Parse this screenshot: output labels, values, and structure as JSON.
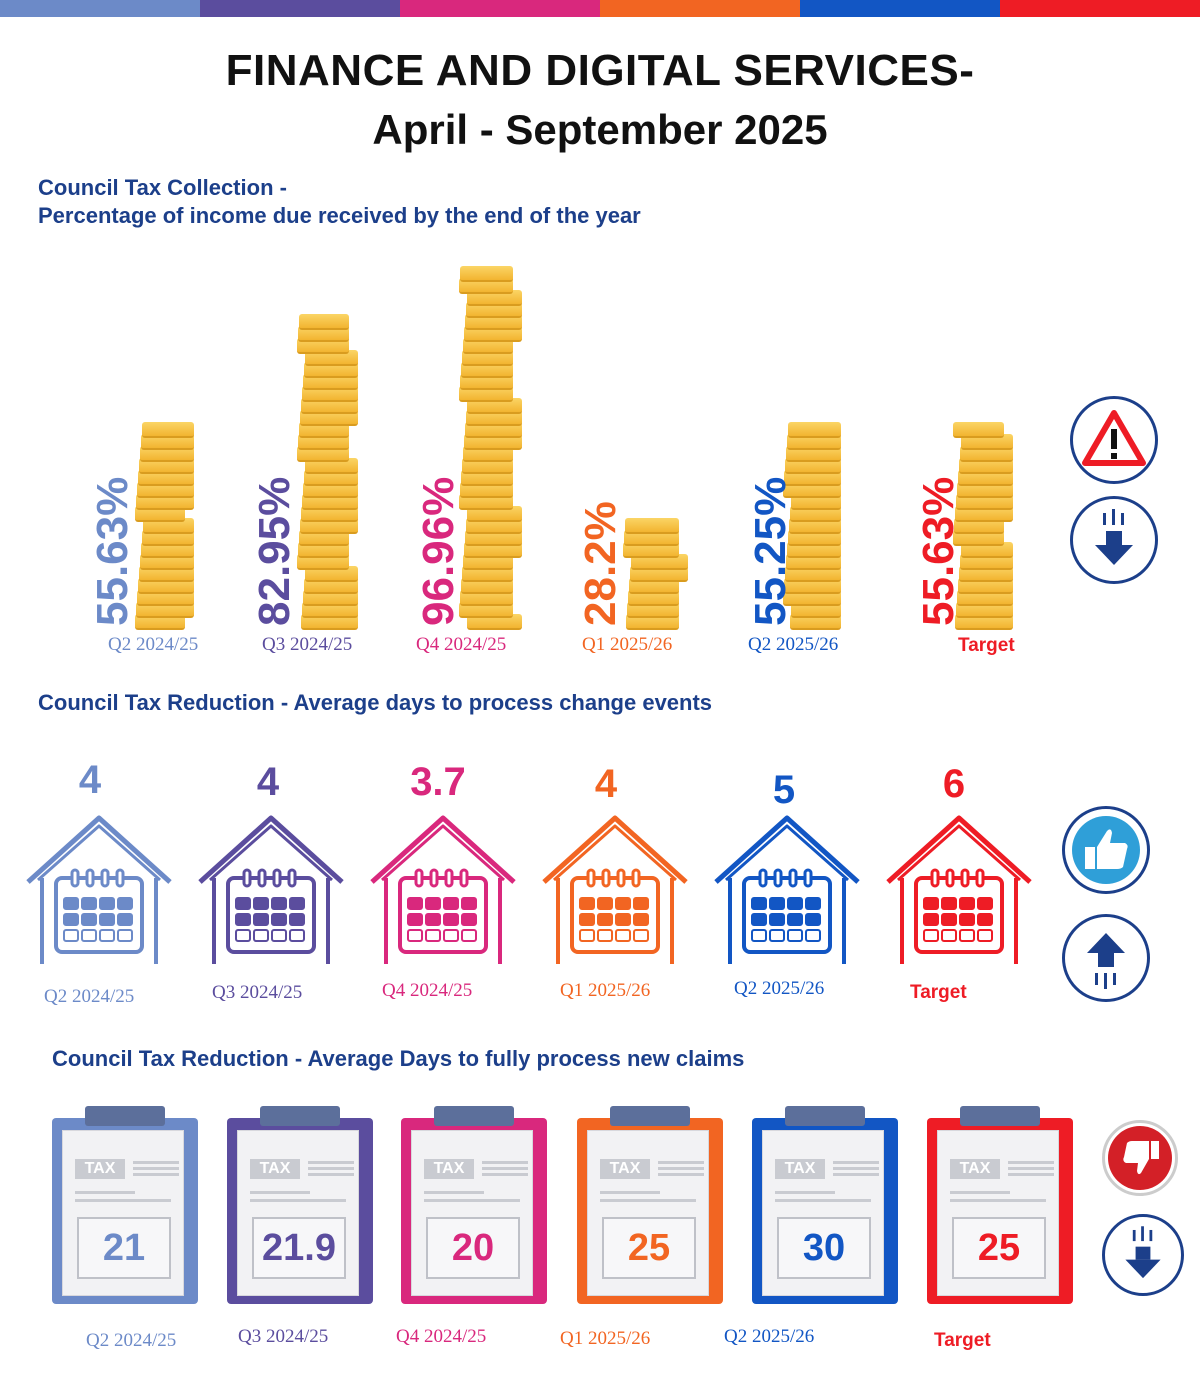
{
  "colors": [
    "#6c8ac8",
    "#5b4d9e",
    "#d9287d",
    "#f26522",
    "#1256c4",
    "#ee1c25"
  ],
  "title": "FINANCE AND DIGITAL SERVICES-",
  "subtitle": "April - September 2025",
  "section1": {
    "heading_line1": "Council Tax Collection -",
    "heading_line2": "Percentage of income due received by the end of the year",
    "items": [
      {
        "value": "55.63%",
        "period": "Q2 2024/25",
        "level": 55.63
      },
      {
        "value": "82.95%",
        "period": "Q3 2024/25",
        "level": 82.95
      },
      {
        "value": "96.96%",
        "period": "Q4 2024/25",
        "level": 96.96
      },
      {
        "value": "28.2%",
        "period": "Q1 2025/26",
        "level": 28.2
      },
      {
        "value": "55.25%",
        "period": "Q2 2025/26",
        "level": 55.25
      },
      {
        "value": "55.63%",
        "period": "Target",
        "level": 55.63
      }
    ],
    "icons": [
      "warning-icon",
      "arrow-down-icon"
    ]
  },
  "section2": {
    "heading": "Council Tax Reduction - Average days to process change events",
    "items": [
      {
        "value": "4",
        "period": "Q2 2024/25"
      },
      {
        "value": "4",
        "period": "Q3 2024/25"
      },
      {
        "value": "3.7",
        "period": "Q4 2024/25"
      },
      {
        "value": "4",
        "period": "Q1 2025/26"
      },
      {
        "value": "5",
        "period": "Q2 2025/26"
      },
      {
        "value": "6",
        "period": "Target"
      }
    ],
    "icons": [
      "thumbs-up-icon",
      "arrow-up-icon"
    ]
  },
  "section3": {
    "heading": "Council Tax Reduction - Average Days to fully process new claims",
    "tax_label": "TAX",
    "items": [
      {
        "value": "21",
        "period": "Q2 2024/25"
      },
      {
        "value": "21.9",
        "period": "Q3 2024/25"
      },
      {
        "value": "20",
        "period": "Q4 2024/25"
      },
      {
        "value": "25",
        "period": "Q1 2025/26"
      },
      {
        "value": "30",
        "period": "Q2 2025/26"
      },
      {
        "value": "25",
        "period": "Target"
      }
    ],
    "icons": [
      "thumbs-down-icon",
      "arrow-down-icon"
    ]
  }
}
